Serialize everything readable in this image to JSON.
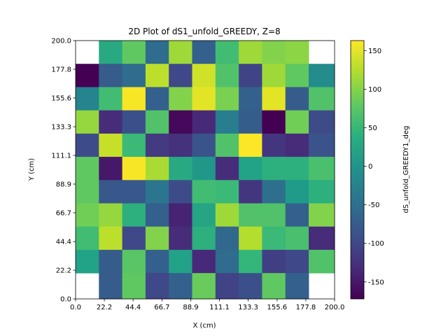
{
  "chart_data": {
    "type": "heatmap",
    "title": "2D Plot of dS1_unfold_GREEDY, Z=8",
    "xlabel": "X (cm)",
    "ylabel": "Y (cm)",
    "colorbar_label": "dS_unfold_GREEDY1_deg",
    "colormap": "viridis",
    "xlim": [
      0.0,
      200.0
    ],
    "ylim": [
      0.0,
      200.0
    ],
    "vlim": [
      -172,
      163
    ],
    "x_ticks": [
      "0.0",
      "22.2",
      "44.4",
      "66.7",
      "88.9",
      "111.1",
      "133.3",
      "155.6",
      "177.8",
      "200.0"
    ],
    "y_ticks": [
      "0.0",
      "22.2",
      "44.4",
      "66.7",
      "88.9",
      "111.1",
      "133.3",
      "155.6",
      "177.8",
      "200.0"
    ],
    "colorbar_ticks": [
      "-150",
      "-100",
      "-50",
      "0",
      "50",
      "100",
      "150"
    ],
    "colorbar_tick_values": [
      -150,
      -100,
      -50,
      0,
      50,
      100,
      150
    ],
    "grid_size": 18,
    "rows_note": "rows listed from top (y 180-200) to bottom (y 0-20); null = no data",
    "z": [
      [
        null,
        30,
        80,
        -55,
        115,
        -70,
        60,
        115,
        100,
        105,
        null
      ],
      [
        -172,
        -75,
        -55,
        130,
        -100,
        140,
        70,
        -105,
        115,
        80,
        -10
      ],
      [
        -20,
        60,
        160,
        -70,
        100,
        150,
        95,
        -70,
        150,
        -75,
        70
      ],
      [
        110,
        -130,
        -90,
        70,
        -165,
        -135,
        -30,
        -75,
        -172,
        90,
        -95
      ],
      [
        -95,
        135,
        55,
        -115,
        -125,
        -85,
        70,
        162,
        -120,
        -130,
        -85
      ],
      [
        80,
        -150,
        160,
        120,
        30,
        5,
        -130,
        20,
        40,
        40,
        65
      ],
      [
        80,
        -80,
        -80,
        -40,
        -95,
        60,
        55,
        -120,
        -50,
        10,
        40
      ],
      [
        90,
        110,
        40,
        -70,
        -140,
        25,
        115,
        70,
        70,
        -70,
        100
      ],
      [
        60,
        130,
        -100,
        100,
        -130,
        40,
        -60,
        125,
        55,
        65,
        -130
      ],
      [
        20,
        -75,
        75,
        -70,
        20,
        -135,
        -55,
        50,
        -110,
        -100,
        70
      ],
      [
        null,
        -75,
        80,
        -100,
        -70,
        85,
        -105,
        -90,
        80,
        -70,
        null
      ]
    ]
  }
}
